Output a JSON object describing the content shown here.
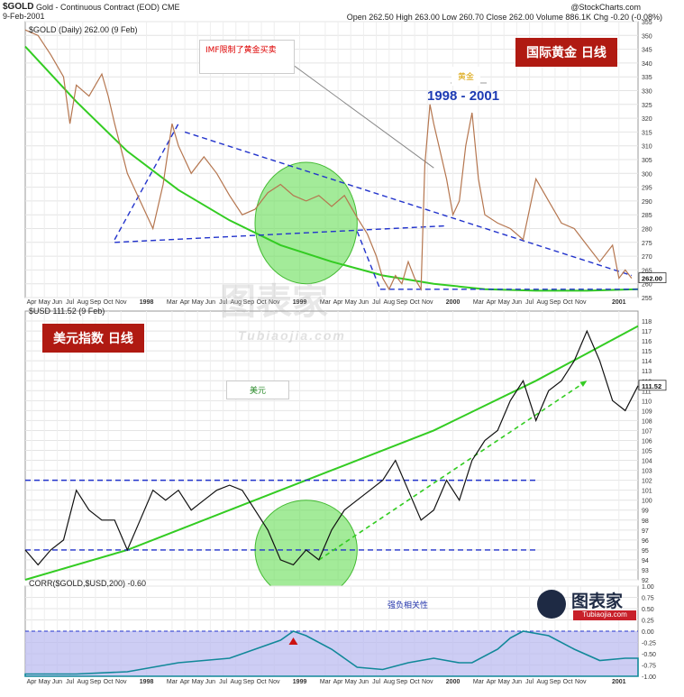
{
  "header": {
    "symbol": "$GOLD",
    "description": "Gold - Continuous Contract (EOD) CME",
    "date": "9-Feb-2001",
    "copyright": "@StockCharts.com",
    "quote": "Open 262.50  High 263.00  Low 260.70  Close 262.00  Volume 886.1K  Chg -0.20 (-0.08%)"
  },
  "colors": {
    "price_line": "#b5764f",
    "trend_green": "#33cc22",
    "trend_blue": "#2233cc",
    "highlight_fill": "#66dd55",
    "corr_fill": "#b8b8f0",
    "callout_red": "#b01a12",
    "period_blue": "#1d3bb3"
  },
  "annotations": {
    "gold_title": "国际黄金 日线",
    "usd_title": "美元指数 日线",
    "imf_note": "IMF限制了黄金买卖",
    "gold_label": "黄金",
    "period": "1998 - 2001",
    "usd_label": "美元",
    "corr_note": "强负相关性",
    "watermark": "图表家",
    "watermark_sub": "Tubiaojia.com",
    "logo_text": "图表家",
    "logo_sub": "Tubiaojia.com"
  },
  "chart_data": [
    {
      "type": "line",
      "series_name": "$GOLD (Daily) 262.00 (9 Feb)",
      "last_value_label": "262.00",
      "ylim": [
        255,
        355
      ],
      "y_ticks": [
        255,
        260,
        265,
        270,
        275,
        280,
        285,
        290,
        295,
        300,
        305,
        310,
        315,
        320,
        325,
        330,
        335,
        340,
        345,
        350,
        355
      ],
      "x_range": [
        0,
        48
      ],
      "x_ticks": [
        {
          "x": 0.5,
          "label": "Apr"
        },
        {
          "x": 1.5,
          "label": "May"
        },
        {
          "x": 2.5,
          "label": "Jun"
        },
        {
          "x": 3.5,
          "label": "Jul"
        },
        {
          "x": 4.5,
          "label": "Aug"
        },
        {
          "x": 5.5,
          "label": "Sep"
        },
        {
          "x": 6.5,
          "label": "Oct"
        },
        {
          "x": 7.5,
          "label": "Nov"
        },
        {
          "x": 9.5,
          "label": "1998"
        },
        {
          "x": 11.5,
          "label": "Mar"
        },
        {
          "x": 12.5,
          "label": "Apr"
        },
        {
          "x": 13.5,
          "label": "May"
        },
        {
          "x": 14.5,
          "label": "Jun"
        },
        {
          "x": 15.5,
          "label": "Jul"
        },
        {
          "x": 16.5,
          "label": "Aug"
        },
        {
          "x": 17.5,
          "label": "Sep"
        },
        {
          "x": 18.5,
          "label": "Oct"
        },
        {
          "x": 19.5,
          "label": "Nov"
        },
        {
          "x": 21.5,
          "label": "1999"
        },
        {
          "x": 23.5,
          "label": "Mar"
        },
        {
          "x": 24.5,
          "label": "Apr"
        },
        {
          "x": 25.5,
          "label": "May"
        },
        {
          "x": 26.5,
          "label": "Jun"
        },
        {
          "x": 27.5,
          "label": "Jul"
        },
        {
          "x": 28.5,
          "label": "Aug"
        },
        {
          "x": 29.5,
          "label": "Sep"
        },
        {
          "x": 30.5,
          "label": "Oct"
        },
        {
          "x": 31.5,
          "label": "Nov"
        },
        {
          "x": 33.5,
          "label": "2000"
        },
        {
          "x": 35.5,
          "label": "Mar"
        },
        {
          "x": 36.5,
          "label": "Apr"
        },
        {
          "x": 37.5,
          "label": "May"
        },
        {
          "x": 38.5,
          "label": "Jun"
        },
        {
          "x": 39.5,
          "label": "Jul"
        },
        {
          "x": 40.5,
          "label": "Aug"
        },
        {
          "x": 41.5,
          "label": "Sep"
        },
        {
          "x": 42.5,
          "label": "Oct"
        },
        {
          "x": 43.5,
          "label": "Nov"
        },
        {
          "x": 46.5,
          "label": "2001"
        }
      ],
      "points": [
        [
          0,
          352
        ],
        [
          1,
          350
        ],
        [
          2,
          343
        ],
        [
          3,
          335
        ],
        [
          3.5,
          318
        ],
        [
          4,
          332
        ],
        [
          5,
          328
        ],
        [
          6,
          336
        ],
        [
          6.5,
          328
        ],
        [
          7,
          318
        ],
        [
          8,
          300
        ],
        [
          9,
          290
        ],
        [
          10,
          280
        ],
        [
          10.8,
          296
        ],
        [
          11.5,
          318
        ],
        [
          12,
          310
        ],
        [
          13,
          300
        ],
        [
          14,
          306
        ],
        [
          15,
          300
        ],
        [
          16,
          292
        ],
        [
          17,
          285
        ],
        [
          18,
          287
        ],
        [
          19,
          293
        ],
        [
          20,
          296
        ],
        [
          21,
          292
        ],
        [
          22,
          290
        ],
        [
          23,
          292
        ],
        [
          24,
          288
        ],
        [
          25,
          292
        ],
        [
          26,
          284
        ],
        [
          26.8,
          278
        ],
        [
          27.5,
          270
        ],
        [
          28,
          262
        ],
        [
          28.5,
          258
        ],
        [
          29,
          263
        ],
        [
          29.5,
          260
        ],
        [
          30,
          268
        ],
        [
          30.5,
          262
        ],
        [
          31,
          258
        ],
        [
          31.3,
          303
        ],
        [
          31.7,
          325
        ],
        [
          32,
          318
        ],
        [
          32.5,
          308
        ],
        [
          33,
          298
        ],
        [
          33.5,
          285
        ],
        [
          34,
          290
        ],
        [
          34.5,
          310
        ],
        [
          35,
          322
        ],
        [
          35.5,
          298
        ],
        [
          36,
          285
        ],
        [
          37,
          282
        ],
        [
          38,
          280
        ],
        [
          39,
          276
        ],
        [
          40,
          298
        ],
        [
          41,
          290
        ],
        [
          42,
          282
        ],
        [
          43,
          280
        ],
        [
          44,
          274
        ],
        [
          45,
          268
        ],
        [
          46,
          274
        ],
        [
          46.5,
          262
        ],
        [
          47,
          265
        ],
        [
          47.5,
          262
        ]
      ],
      "green_curve": [
        [
          0,
          346
        ],
        [
          4,
          326
        ],
        [
          8,
          308
        ],
        [
          12,
          294
        ],
        [
          16,
          283
        ],
        [
          20,
          274
        ],
        [
          24,
          268
        ],
        [
          28,
          263
        ],
        [
          32,
          260
        ],
        [
          36,
          258
        ],
        [
          40,
          257.5
        ],
        [
          44,
          257.5
        ],
        [
          48,
          258
        ]
      ],
      "blue_lines": [
        [
          [
            7,
            276
          ],
          [
            12,
            318
          ]
        ],
        [
          [
            12.5,
            315
          ],
          [
            47.5,
            263
          ]
        ],
        [
          [
            7,
            275
          ],
          [
            33,
            281
          ]
        ],
        [
          [
            26,
            279
          ],
          [
            27.8,
            258
          ]
        ],
        [
          [
            27.8,
            258
          ],
          [
            48,
            258
          ]
        ]
      ],
      "callout_line": [
        [
          19,
          346
        ],
        [
          32,
          302
        ]
      ],
      "ellipse": {
        "cx": 22,
        "cy": 282,
        "rx": 4,
        "ry": 22
      }
    },
    {
      "type": "line",
      "series_name": "$USD 111.52 (9 Feb)",
      "last_value_label": "111.52",
      "ylim": [
        92,
        119
      ],
      "y_ticks": [
        92,
        93,
        94,
        95,
        96,
        97,
        98,
        99,
        100,
        101,
        102,
        103,
        104,
        105,
        106,
        107,
        108,
        109,
        110,
        111,
        112,
        113,
        114,
        115,
        116,
        117,
        118
      ],
      "points": [
        [
          0,
          95
        ],
        [
          1,
          93.5
        ],
        [
          2,
          95
        ],
        [
          3,
          96
        ],
        [
          4,
          101
        ],
        [
          5,
          99
        ],
        [
          6,
          98
        ],
        [
          7,
          98
        ],
        [
          8,
          95
        ],
        [
          9,
          98
        ],
        [
          10,
          101
        ],
        [
          11,
          100
        ],
        [
          12,
          101
        ],
        [
          13,
          99
        ],
        [
          14,
          100
        ],
        [
          15,
          101
        ],
        [
          16,
          101.5
        ],
        [
          17,
          101
        ],
        [
          18,
          99
        ],
        [
          19,
          97
        ],
        [
          20,
          94
        ],
        [
          21,
          93.5
        ],
        [
          22,
          95
        ],
        [
          23,
          94
        ],
        [
          24,
          97
        ],
        [
          25,
          99
        ],
        [
          26,
          100
        ],
        [
          27,
          101
        ],
        [
          28,
          102
        ],
        [
          29,
          104
        ],
        [
          30,
          101
        ],
        [
          31,
          98
        ],
        [
          32,
          99
        ],
        [
          33,
          102
        ],
        [
          34,
          100
        ],
        [
          35,
          104
        ],
        [
          36,
          106
        ],
        [
          37,
          107
        ],
        [
          38,
          110
        ],
        [
          39,
          112
        ],
        [
          40,
          108
        ],
        [
          41,
          111
        ],
        [
          42,
          112
        ],
        [
          43,
          114
        ],
        [
          44,
          117
        ],
        [
          45,
          114
        ],
        [
          46,
          110
        ],
        [
          47,
          109
        ],
        [
          48,
          111.5
        ]
      ],
      "green_curve": [
        [
          0,
          92
        ],
        [
          8,
          95
        ],
        [
          16,
          99
        ],
        [
          24,
          103
        ],
        [
          32,
          107
        ],
        [
          40,
          112
        ],
        [
          48,
          117.5
        ]
      ],
      "blue_lines": [
        [
          [
            0,
            102
          ],
          [
            40,
            102
          ]
        ],
        [
          [
            0,
            95
          ],
          [
            40,
            95
          ]
        ]
      ],
      "dashed_arrow": [
        [
          23,
          94
        ],
        [
          44,
          112
        ]
      ],
      "ellipse": {
        "cx": 22,
        "cy": 95,
        "rx": 4,
        "ry": 5
      }
    },
    {
      "type": "area",
      "series_name": "CORR($GOLD,$USD,200) -0.60",
      "ylim": [
        -1,
        1
      ],
      "y_ticks": [
        -1.0,
        -0.75,
        -0.5,
        -0.25,
        0.0,
        0.25,
        0.5,
        0.75,
        1.0
      ],
      "points": [
        [
          0,
          -0.95
        ],
        [
          4,
          -0.95
        ],
        [
          8,
          -0.9
        ],
        [
          12,
          -0.7
        ],
        [
          16,
          -0.6
        ],
        [
          19,
          -0.3
        ],
        [
          20,
          -0.2
        ],
        [
          21,
          0
        ],
        [
          22,
          -0.1
        ],
        [
          24,
          -0.4
        ],
        [
          26,
          -0.8
        ],
        [
          28,
          -0.85
        ],
        [
          30,
          -0.7
        ],
        [
          32,
          -0.6
        ],
        [
          34,
          -0.7
        ],
        [
          35,
          -0.7
        ],
        [
          37,
          -0.4
        ],
        [
          38,
          -0.15
        ],
        [
          39,
          0
        ],
        [
          41,
          -0.1
        ],
        [
          43,
          -0.4
        ],
        [
          45,
          -0.65
        ],
        [
          47,
          -0.6
        ],
        [
          48,
          -0.6
        ]
      ]
    }
  ]
}
